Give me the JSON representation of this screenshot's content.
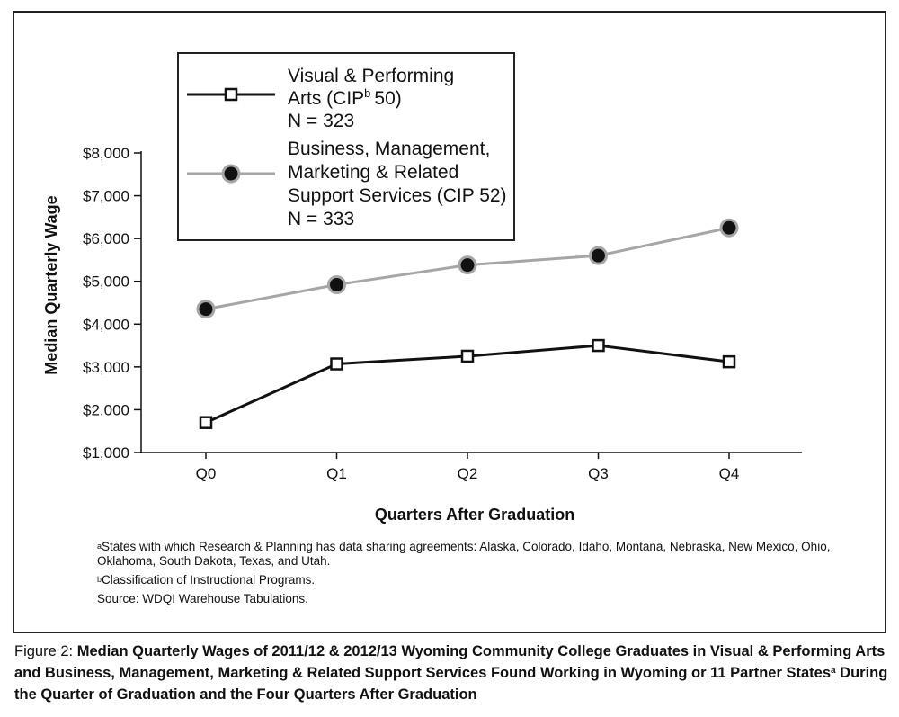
{
  "chart_data": {
    "type": "line",
    "categories": [
      "Q0",
      "Q1",
      "Q2",
      "Q3",
      "Q4"
    ],
    "xlabel": "Quarters After Graduation",
    "ylabel": "Median Quarterly Wage",
    "ylim": [
      1000,
      8000
    ],
    "yticks": [
      "$1,000",
      "$2,000",
      "$3,000",
      "$4,000",
      "$5,000",
      "$6,000",
      "$7,000",
      "$8,000"
    ],
    "ytick_values": [
      1000,
      2000,
      3000,
      4000,
      5000,
      6000,
      7000,
      8000
    ],
    "grid": false,
    "legend_position": "top-left",
    "series": [
      {
        "name": "Visual & Performing Arts (CIPᵇ 50)",
        "legend_lines": [
          "Visual & Performing",
          "Arts (CIP",
          "50)",
          "N = 323"
        ],
        "n": "N = 323",
        "color": "#111111",
        "marker": "hollow-square",
        "values": [
          1700,
          3070,
          3250,
          3500,
          3120
        ]
      },
      {
        "name": "Business, Management, Marketing & Related Support Services (CIP 52)",
        "legend_lines": [
          "Business, Management,",
          "Marketing & Related",
          "Support Services (CIP 52)",
          "N = 333"
        ],
        "n": "N = 333",
        "color": "#a6a6a6",
        "marker": "filled-circle",
        "values": [
          4350,
          4920,
          5380,
          5600,
          6250
        ]
      }
    ]
  },
  "notes": {
    "note_a": "States with which Research & Planning has data sharing agreements: Alaska, Colorado, Idaho, Montana, Nebraska, New Mexico, Ohio, Oklahoma, South Dakota, Texas, and Utah.",
    "note_b": "Classification of Instructional Programs.",
    "source": "Source: WDQI Warehouse Tabulations.",
    "mark_a": "a",
    "mark_b": "b"
  },
  "caption": {
    "label": "Figure 2:",
    "text_1": "Median Quarterly Wages of 2011/12 & 2012/13 Wyoming Community College Graduates in Visual & Performing Arts and Business, Management, Marketing & Related Support Services Found Working in Wyoming or 11 Partner States",
    "mark": "a",
    "text_2": " During the Quarter of Graduation and the Four Quarters After Graduation"
  }
}
